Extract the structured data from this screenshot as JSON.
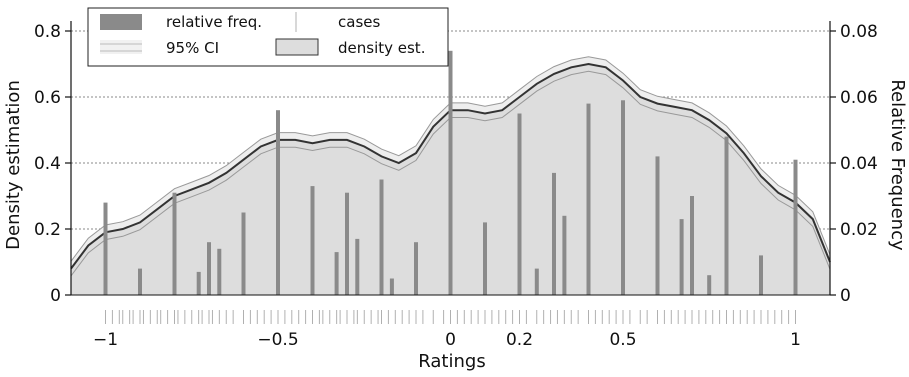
{
  "chart_data": {
    "type": "bar",
    "xlabel": "Ratings",
    "ylabel_left": "Density estimation",
    "ylabel_right": "Relative Frequency",
    "xlim": [
      -1.1,
      1.1
    ],
    "ylim_left": [
      0,
      0.8
    ],
    "ylim_right": [
      0,
      0.08
    ],
    "x_ticks": [
      {
        "value": -1,
        "label": "−1"
      },
      {
        "value": -0.5,
        "label": "−0.5"
      },
      {
        "value": 0,
        "label": "0"
      },
      {
        "value": 0.2,
        "label": "0.2",
        "color": "#777777"
      },
      {
        "value": 0.5,
        "label": "0.5"
      },
      {
        "value": 1,
        "label": "1"
      }
    ],
    "y_ticks_left": [
      {
        "value": 0,
        "label": "0"
      },
      {
        "value": 0.2,
        "label": "0.2"
      },
      {
        "value": 0.4,
        "label": "0.4"
      },
      {
        "value": 0.6,
        "label": "0.6"
      },
      {
        "value": 0.8,
        "label": "0.8"
      }
    ],
    "y_ticks_right": [
      {
        "value": 0,
        "label": "0"
      },
      {
        "value": 0.02,
        "label": "0.02"
      },
      {
        "value": 0.04,
        "label": "0.04"
      },
      {
        "value": 0.06,
        "label": "0.06"
      },
      {
        "value": 0.08,
        "label": "0.08"
      }
    ],
    "grid": "horizontal dotted",
    "legend": {
      "position": "top-left",
      "entries": [
        {
          "key": "relative_freq",
          "label": "relative freq."
        },
        {
          "key": "ci",
          "label": "95% CI"
        },
        {
          "key": "cases",
          "label": "cases"
        },
        {
          "key": "density",
          "label": "density est."
        }
      ]
    },
    "colors": {
      "bar": "#8a8a8a",
      "density_fill": "#dddddd",
      "density_line": "#333333",
      "ci_fill": "#eeeeee",
      "ci_line": "#999999",
      "grid": "#888888",
      "rug": "#b0b0b0"
    },
    "relative_freq": {
      "x": [
        -1,
        -0.9,
        -0.8,
        -0.73,
        -0.7,
        -0.67,
        -0.6,
        -0.5,
        -0.4,
        -0.33,
        -0.3,
        -0.27,
        -0.2,
        -0.17,
        -0.1,
        0,
        0.1,
        0.2,
        0.25,
        0.3,
        0.33,
        0.4,
        0.5,
        0.6,
        0.67,
        0.7,
        0.75,
        0.8,
        0.9,
        1
      ],
      "values": [
        0.028,
        0.008,
        0.031,
        0.007,
        0.016,
        0.014,
        0.025,
        0.056,
        0.033,
        0.013,
        0.031,
        0.017,
        0.035,
        0.005,
        0.016,
        0.074,
        0.022,
        0.055,
        0.008,
        0.037,
        0.024,
        0.058,
        0.059,
        0.042,
        0.023,
        0.03,
        0.006,
        0.048,
        0.012,
        0.041
      ]
    },
    "density_est": {
      "x": [
        -1.1,
        -1.05,
        -1.0,
        -0.95,
        -0.9,
        -0.85,
        -0.8,
        -0.75,
        -0.7,
        -0.65,
        -0.6,
        -0.55,
        -0.5,
        -0.45,
        -0.4,
        -0.35,
        -0.3,
        -0.25,
        -0.2,
        -0.15,
        -0.1,
        -0.05,
        0.0,
        0.05,
        0.1,
        0.15,
        0.2,
        0.25,
        0.3,
        0.35,
        0.4,
        0.45,
        0.5,
        0.55,
        0.6,
        0.65,
        0.7,
        0.75,
        0.8,
        0.85,
        0.9,
        0.95,
        1.0,
        1.05,
        1.1
      ],
      "y": [
        0.08,
        0.15,
        0.19,
        0.2,
        0.22,
        0.26,
        0.3,
        0.32,
        0.34,
        0.37,
        0.41,
        0.45,
        0.47,
        0.47,
        0.46,
        0.47,
        0.47,
        0.45,
        0.42,
        0.4,
        0.43,
        0.51,
        0.56,
        0.56,
        0.55,
        0.56,
        0.6,
        0.64,
        0.67,
        0.69,
        0.7,
        0.69,
        0.65,
        0.6,
        0.58,
        0.57,
        0.56,
        0.53,
        0.49,
        0.43,
        0.36,
        0.31,
        0.28,
        0.23,
        0.1
      ],
      "ci_halfwidth": 0.022
    },
    "cases_rug": [
      -1.0,
      -0.98,
      -0.96,
      -0.95,
      -0.93,
      -0.92,
      -0.9,
      -0.89,
      -0.87,
      -0.85,
      -0.84,
      -0.82,
      -0.8,
      -0.79,
      -0.77,
      -0.75,
      -0.73,
      -0.72,
      -0.7,
      -0.69,
      -0.67,
      -0.65,
      -0.63,
      -0.6,
      -0.58,
      -0.56,
      -0.54,
      -0.52,
      -0.5,
      -0.48,
      -0.46,
      -0.44,
      -0.42,
      -0.4,
      -0.38,
      -0.37,
      -0.35,
      -0.33,
      -0.32,
      -0.3,
      -0.28,
      -0.27,
      -0.25,
      -0.23,
      -0.21,
      -0.2,
      -0.18,
      -0.16,
      -0.14,
      -0.12,
      -0.1,
      -0.08,
      -0.05,
      -0.02,
      0.0,
      0.02,
      0.04,
      0.06,
      0.08,
      0.1,
      0.12,
      0.14,
      0.16,
      0.18,
      0.2,
      0.22,
      0.25,
      0.27,
      0.29,
      0.31,
      0.33,
      0.35,
      0.37,
      0.4,
      0.42,
      0.44,
      0.46,
      0.48,
      0.5,
      0.52,
      0.55,
      0.57,
      0.6,
      0.62,
      0.64,
      0.66,
      0.68,
      0.7,
      0.72,
      0.74,
      0.76,
      0.78,
      0.8,
      0.82,
      0.84,
      0.86,
      0.88,
      0.9,
      0.92,
      0.94,
      0.96,
      0.98,
      1.0
    ]
  }
}
